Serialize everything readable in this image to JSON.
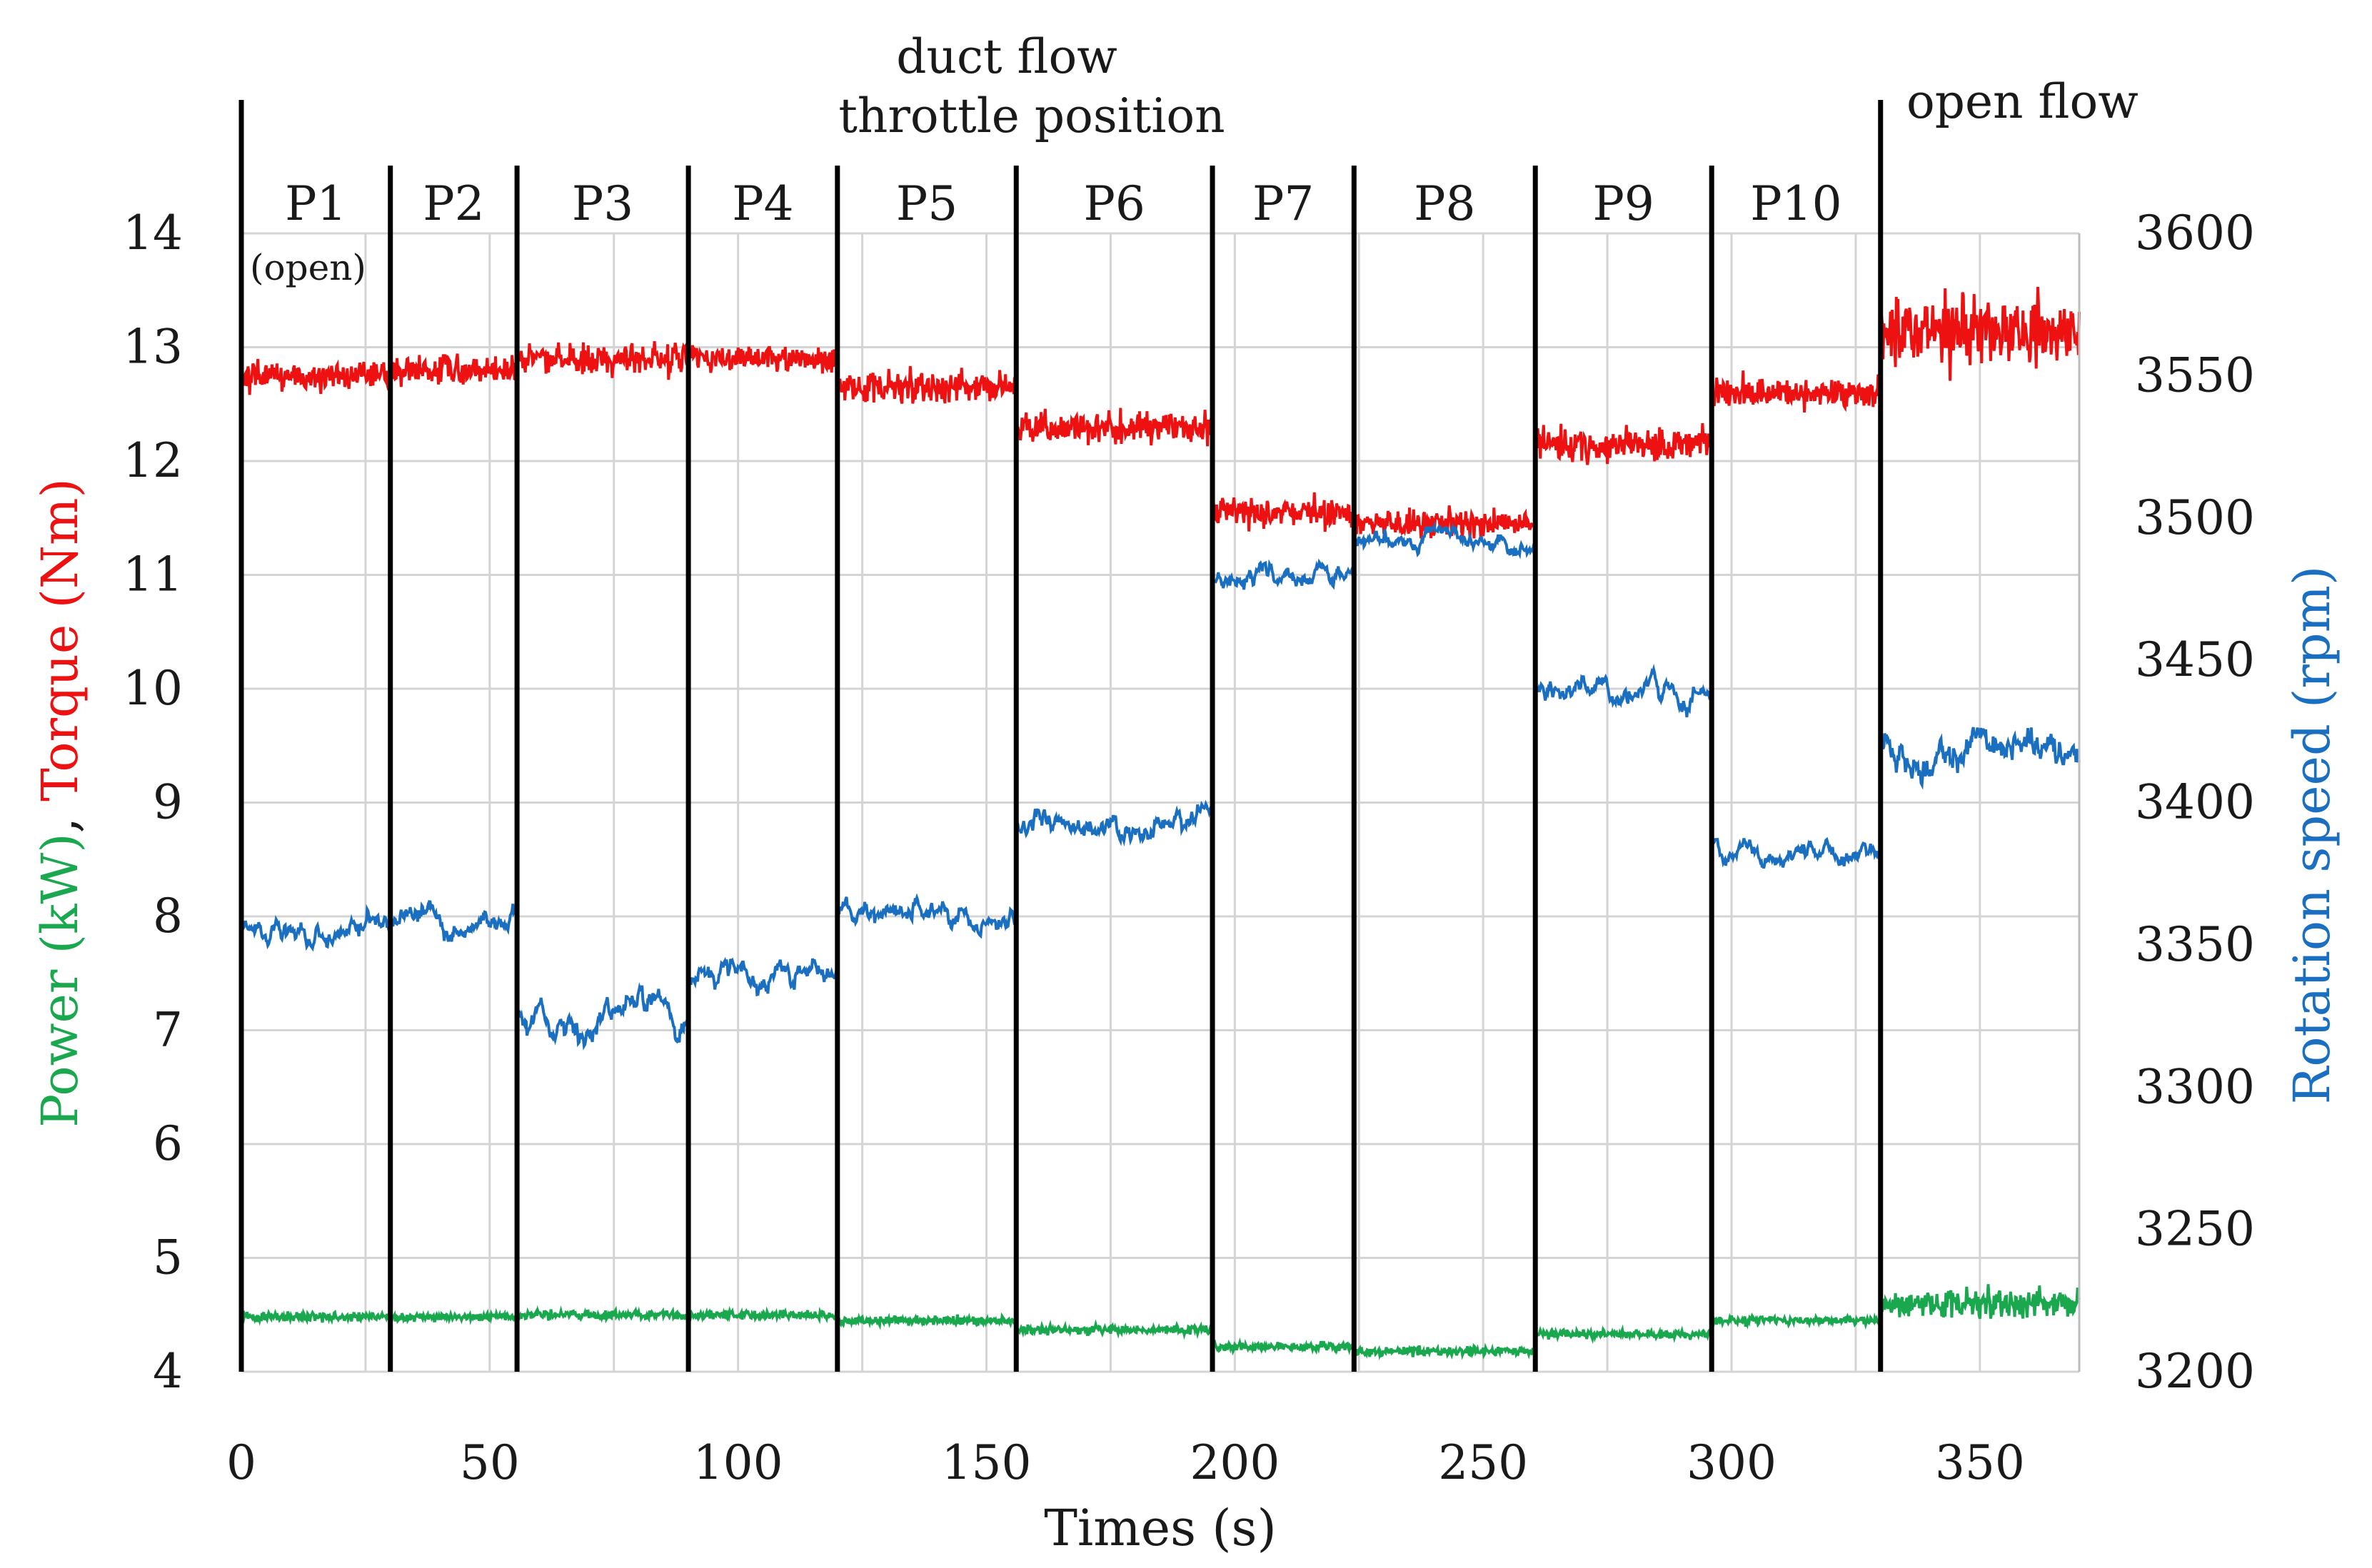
{
  "chart_data": {
    "type": "line",
    "title": "",
    "header_lines": [
      "duct flow",
      "throttle position"
    ],
    "open_flow_label": "open flow",
    "xlabel": "Times (s)",
    "ylabel_left_parts": [
      {
        "text": "Power (kW)",
        "color": "#1aa84f"
      },
      {
        "text": ", ",
        "color": "#1a1a1a"
      },
      {
        "text": "Torque (Nm)",
        "color": "#ee1111"
      }
    ],
    "ylabel_right": "Rotation speed (rpm)",
    "ylabel_right_color": "#1a6fc0",
    "xlim": [
      0,
      370
    ],
    "ylim_left": [
      4,
      14
    ],
    "ylim_right": [
      3200,
      3600
    ],
    "x_ticks": [
      0,
      50,
      100,
      150,
      200,
      250,
      300,
      350
    ],
    "y_left_ticks": [
      4,
      5,
      6,
      7,
      8,
      9,
      10,
      11,
      12,
      13,
      14
    ],
    "y_right_ticks": [
      3200,
      3250,
      3300,
      3350,
      3400,
      3450,
      3500,
      3550,
      3600
    ],
    "grid": true,
    "phases": [
      {
        "label": "P1",
        "start": 0,
        "end": 30,
        "note": "(open)",
        "torque": 12.75,
        "speed": 3355,
        "power": 4.48,
        "t_noise": 0.13,
        "s_noise": 5,
        "p_noise": 0.04
      },
      {
        "label": "P2",
        "start": 30,
        "end": 55.5,
        "torque": 12.8,
        "speed": 3360,
        "power": 4.48,
        "t_noise": 0.13,
        "s_noise": 5,
        "p_noise": 0.04
      },
      {
        "label": "P3",
        "start": 55.5,
        "end": 90,
        "torque": 12.9,
        "speed": 3325,
        "power": 4.5,
        "t_noise": 0.14,
        "s_noise": 6,
        "p_noise": 0.04
      },
      {
        "label": "P4",
        "start": 90,
        "end": 120,
        "torque": 12.9,
        "speed": 3340,
        "power": 4.5,
        "t_noise": 0.13,
        "s_noise": 5,
        "p_noise": 0.04
      },
      {
        "label": "P5",
        "start": 120,
        "end": 156,
        "torque": 12.65,
        "speed": 3360,
        "power": 4.45,
        "t_noise": 0.13,
        "s_noise": 5,
        "p_noise": 0.04
      },
      {
        "label": "P6",
        "start": 156,
        "end": 195.5,
        "torque": 12.3,
        "speed": 3393,
        "power": 4.37,
        "t_noise": 0.14,
        "s_noise": 5,
        "p_noise": 0.04
      },
      {
        "label": "P7",
        "start": 195.5,
        "end": 224,
        "torque": 11.55,
        "speed": 3480,
        "power": 4.22,
        "t_noise": 0.13,
        "s_noise": 4,
        "p_noise": 0.04
      },
      {
        "label": "P8",
        "start": 224,
        "end": 260.5,
        "torque": 11.45,
        "speed": 3493,
        "power": 4.18,
        "t_noise": 0.12,
        "s_noise": 4,
        "p_noise": 0.04
      },
      {
        "label": "P9",
        "start": 260.5,
        "end": 296,
        "torque": 12.15,
        "speed": 3440,
        "power": 4.33,
        "t_noise": 0.15,
        "s_noise": 5,
        "p_noise": 0.04
      },
      {
        "label": "P10",
        "start": 296,
        "end": 330,
        "torque": 12.6,
        "speed": 3383,
        "power": 4.45,
        "t_noise": 0.14,
        "s_noise": 4,
        "p_noise": 0.04
      },
      {
        "label": "",
        "start": 330,
        "end": 370,
        "torque": 13.15,
        "speed": 3420,
        "power": 4.6,
        "t_noise": 0.3,
        "s_noise": 8,
        "p_noise": 0.12
      }
    ],
    "series": [
      {
        "name": "Torque (Nm)",
        "axis": "left",
        "color": "#ee1111"
      },
      {
        "name": "Power (kW)",
        "axis": "left",
        "color": "#1aa84f"
      },
      {
        "name": "Rotation speed (rpm)",
        "axis": "right",
        "color": "#1a6fc0"
      }
    ]
  }
}
